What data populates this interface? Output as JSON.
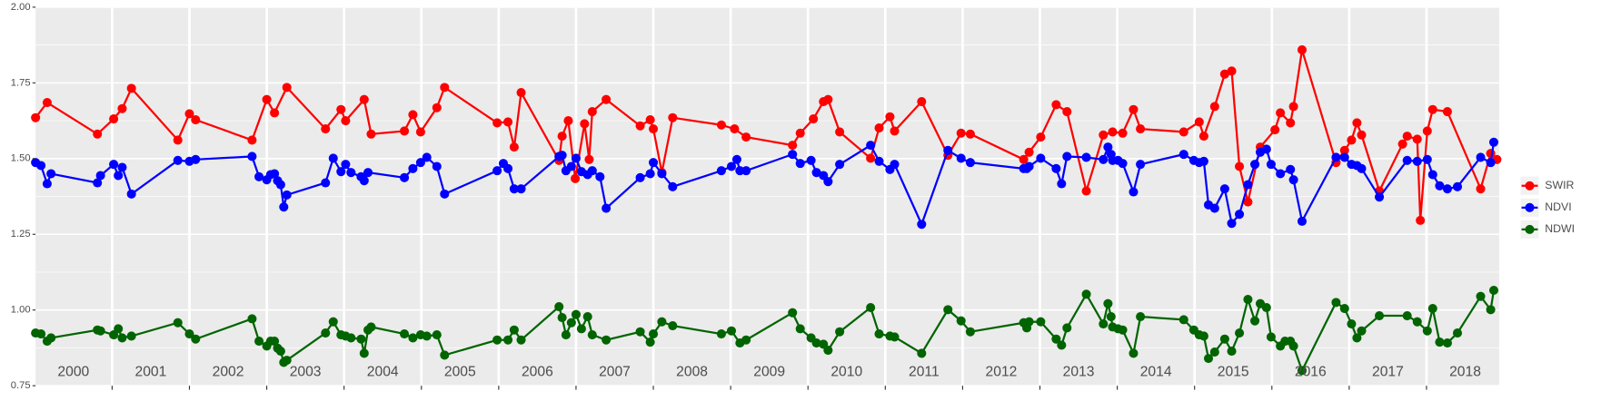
{
  "chart_data": {
    "type": "line",
    "categories": [
      "2000",
      "2001",
      "2002",
      "2003",
      "2004",
      "2005",
      "2006",
      "2007",
      "2008",
      "2009",
      "2010",
      "2011",
      "2012",
      "2013",
      "2014",
      "2015",
      "2016",
      "2017",
      "2018"
    ],
    "xgrid": [
      2000,
      2001,
      2002,
      2003,
      2004,
      2005,
      2006,
      2007,
      2008,
      2009,
      2010,
      2011,
      2012,
      2013,
      2014,
      2015,
      2016,
      2017,
      2018,
      2019
    ],
    "xlim": [
      2000.01,
      2018.94
    ],
    "ylim": [
      0.75,
      2.0
    ],
    "yticks": [
      0.75,
      {
        "value": 1.0,
        "label": "1.00"
      },
      1.25,
      {
        "value": 1.5,
        "label": "1.50"
      },
      1.75,
      {
        "value": 2.0,
        "label": "2.00"
      }
    ],
    "grid": true,
    "minor_grid": true,
    "legend": "right",
    "series": [
      {
        "name": "SWIR",
        "color": "#ff0000",
        "x": [
          2000.01,
          2000.16,
          2000.81,
          2001.02,
          2001.13,
          2001.25,
          2001.85,
          2002.0,
          2002.08,
          2002.81,
          2003.0,
          2003.1,
          2003.26,
          2003.76,
          2003.96,
          2004.02,
          2004.26,
          2004.35,
          2004.78,
          2004.89,
          2004.99,
          2005.2,
          2005.3,
          2005.98,
          2006.12,
          2006.2,
          2006.29,
          2006.78,
          2006.82,
          2006.9,
          2006.99,
          2007.11,
          2007.17,
          2007.21,
          2007.39,
          2007.83,
          2007.96,
          2008.0,
          2008.11,
          2008.25,
          2008.88,
          2009.05,
          2009.2,
          2009.8,
          2009.9,
          2010.07,
          2010.2,
          2010.26,
          2010.41,
          2010.81,
          2010.92,
          2011.06,
          2011.12,
          2011.47,
          2011.81,
          2011.98,
          2012.1,
          2012.79,
          2012.86,
          2013.01,
          2013.21,
          2013.35,
          2013.6,
          2013.82,
          2013.94,
          2014.07,
          2014.21,
          2014.3,
          2014.86,
          2015.06,
          2015.12,
          2015.26,
          2015.39,
          2015.48,
          2015.58,
          2015.69,
          2015.85,
          2016.04,
          2016.11,
          2016.24,
          2016.28,
          2016.39,
          2016.83,
          2016.94,
          2017.03,
          2017.1,
          2017.16,
          2017.39,
          2017.69,
          2017.75,
          2017.88,
          2017.92,
          2018.01,
          2018.08,
          2018.27,
          2018.7,
          2018.83,
          2018.91
        ],
        "values": [
          1.635,
          1.685,
          1.581,
          1.631,
          1.665,
          1.732,
          1.561,
          1.648,
          1.628,
          1.561,
          1.695,
          1.651,
          1.735,
          1.598,
          1.662,
          1.625,
          1.695,
          1.581,
          1.591,
          1.645,
          1.588,
          1.668,
          1.735,
          1.618,
          1.621,
          1.538,
          1.718,
          1.494,
          1.574,
          1.625,
          1.434,
          1.615,
          1.497,
          1.655,
          1.695,
          1.608,
          1.628,
          1.598,
          1.454,
          1.635,
          1.611,
          1.598,
          1.571,
          1.544,
          1.584,
          1.631,
          1.688,
          1.695,
          1.588,
          1.501,
          1.601,
          1.638,
          1.591,
          1.688,
          1.511,
          1.584,
          1.581,
          1.497,
          1.521,
          1.571,
          1.678,
          1.655,
          1.393,
          1.578,
          1.588,
          1.584,
          1.662,
          1.598,
          1.588,
          1.621,
          1.574,
          1.672,
          1.779,
          1.789,
          1.474,
          1.357,
          1.538,
          1.595,
          1.651,
          1.618,
          1.672,
          1.859,
          1.487,
          1.527,
          1.561,
          1.618,
          1.578,
          1.393,
          1.548,
          1.574,
          1.564,
          1.296,
          1.591,
          1.662,
          1.655,
          1.4,
          1.517,
          1.497
        ]
      },
      {
        "name": "NDVI",
        "color": "#0000ff",
        "x": [
          2000.01,
          2000.08,
          2000.16,
          2000.21,
          2000.81,
          2000.85,
          2001.02,
          2001.08,
          2001.13,
          2001.25,
          2001.85,
          2002.0,
          2002.08,
          2002.81,
          2002.9,
          2003.0,
          2003.05,
          2003.1,
          2003.14,
          2003.18,
          2003.22,
          2003.26,
          2003.76,
          2003.86,
          2003.96,
          2004.02,
          2004.09,
          2004.22,
          2004.26,
          2004.31,
          2004.78,
          2004.89,
          2004.99,
          2005.07,
          2005.2,
          2005.3,
          2005.98,
          2006.06,
          2006.12,
          2006.2,
          2006.29,
          2006.78,
          2006.82,
          2006.87,
          2006.94,
          2007.0,
          2007.07,
          2007.15,
          2007.21,
          2007.31,
          2007.39,
          2007.83,
          2007.96,
          2008.0,
          2008.11,
          2008.25,
          2008.88,
          2009.01,
          2009.08,
          2009.12,
          2009.2,
          2009.8,
          2009.9,
          2010.04,
          2010.11,
          2010.2,
          2010.26,
          2010.41,
          2010.81,
          2010.92,
          2011.06,
          2011.12,
          2011.47,
          2011.81,
          2011.98,
          2012.1,
          2012.79,
          2012.83,
          2012.86,
          2013.01,
          2013.21,
          2013.28,
          2013.35,
          2013.6,
          2013.82,
          2013.88,
          2013.92,
          2013.94,
          2014.01,
          2014.07,
          2014.21,
          2014.3,
          2014.86,
          2014.99,
          2015.06,
          2015.12,
          2015.18,
          2015.26,
          2015.39,
          2015.48,
          2015.58,
          2015.69,
          2015.78,
          2015.85,
          2015.93,
          2015.99,
          2016.11,
          2016.24,
          2016.28,
          2016.39,
          2016.83,
          2016.94,
          2017.03,
          2017.1,
          2017.16,
          2017.39,
          2017.75,
          2017.88,
          2018.01,
          2018.08,
          2018.17,
          2018.27,
          2018.4,
          2018.7,
          2018.83,
          2018.87
        ],
        "values": [
          1.487,
          1.477,
          1.417,
          1.45,
          1.42,
          1.444,
          1.481,
          1.444,
          1.471,
          1.383,
          1.494,
          1.491,
          1.497,
          1.507,
          1.44,
          1.43,
          1.447,
          1.45,
          1.427,
          1.414,
          1.34,
          1.38,
          1.42,
          1.501,
          1.457,
          1.481,
          1.454,
          1.44,
          1.427,
          1.454,
          1.437,
          1.467,
          1.487,
          1.504,
          1.474,
          1.383,
          1.46,
          1.484,
          1.467,
          1.4,
          1.4,
          1.507,
          1.511,
          1.46,
          1.474,
          1.501,
          1.457,
          1.447,
          1.46,
          1.44,
          1.336,
          1.437,
          1.45,
          1.487,
          1.45,
          1.407,
          1.46,
          1.474,
          1.497,
          1.46,
          1.46,
          1.514,
          1.484,
          1.494,
          1.454,
          1.444,
          1.424,
          1.481,
          1.544,
          1.491,
          1.464,
          1.481,
          1.283,
          1.527,
          1.501,
          1.487,
          1.467,
          1.467,
          1.474,
          1.501,
          1.467,
          1.417,
          1.507,
          1.504,
          1.497,
          1.538,
          1.514,
          1.494,
          1.494,
          1.484,
          1.39,
          1.481,
          1.514,
          1.494,
          1.487,
          1.491,
          1.347,
          1.336,
          1.4,
          1.286,
          1.316,
          1.414,
          1.481,
          1.521,
          1.531,
          1.481,
          1.45,
          1.464,
          1.43,
          1.293,
          1.504,
          1.504,
          1.481,
          1.477,
          1.467,
          1.373,
          1.494,
          1.491,
          1.497,
          1.447,
          1.41,
          1.4,
          1.407,
          1.504,
          1.487,
          1.554
        ]
      },
      {
        "name": "NDWI",
        "color": "#006400",
        "x": [
          2000.01,
          2000.08,
          2000.16,
          2000.21,
          2000.81,
          2000.85,
          2001.02,
          2001.08,
          2001.13,
          2001.25,
          2001.85,
          2002.0,
          2002.08,
          2002.81,
          2002.9,
          2003.0,
          2003.05,
          2003.1,
          2003.14,
          2003.18,
          2003.22,
          2003.26,
          2003.76,
          2003.86,
          2003.96,
          2004.02,
          2004.09,
          2004.22,
          2004.26,
          2004.31,
          2004.35,
          2004.78,
          2004.89,
          2004.99,
          2005.07,
          2005.2,
          2005.3,
          2005.98,
          2006.12,
          2006.2,
          2006.29,
          2006.78,
          2006.82,
          2006.87,
          2006.94,
          2007.0,
          2007.07,
          2007.15,
          2007.21,
          2007.39,
          2007.83,
          2007.96,
          2008.0,
          2008.11,
          2008.25,
          2008.88,
          2009.01,
          2009.12,
          2009.2,
          2009.8,
          2009.9,
          2010.04,
          2010.11,
          2010.2,
          2010.26,
          2010.41,
          2010.81,
          2010.92,
          2011.06,
          2011.12,
          2011.47,
          2011.81,
          2011.98,
          2012.1,
          2012.79,
          2012.83,
          2012.86,
          2013.01,
          2013.21,
          2013.28,
          2013.35,
          2013.6,
          2013.82,
          2013.88,
          2013.92,
          2013.94,
          2014.01,
          2014.07,
          2014.21,
          2014.3,
          2014.86,
          2014.99,
          2015.06,
          2015.12,
          2015.18,
          2015.26,
          2015.39,
          2015.48,
          2015.58,
          2015.69,
          2015.78,
          2015.85,
          2015.93,
          2015.99,
          2016.11,
          2016.17,
          2016.24,
          2016.28,
          2016.39,
          2016.83,
          2016.94,
          2017.03,
          2017.1,
          2017.16,
          2017.39,
          2017.75,
          2017.88,
          2018.01,
          2018.08,
          2018.17,
          2018.27,
          2018.4,
          2018.7,
          2018.83,
          2018.87
        ],
        "values": [
          0.924,
          0.921,
          0.897,
          0.908,
          0.934,
          0.931,
          0.918,
          0.938,
          0.908,
          0.914,
          0.958,
          0.921,
          0.904,
          0.971,
          0.897,
          0.881,
          0.897,
          0.897,
          0.874,
          0.864,
          0.827,
          0.834,
          0.924,
          0.961,
          0.918,
          0.914,
          0.908,
          0.904,
          0.857,
          0.934,
          0.944,
          0.921,
          0.908,
          0.918,
          0.914,
          0.918,
          0.851,
          0.901,
          0.901,
          0.934,
          0.901,
          1.011,
          0.975,
          0.918,
          0.958,
          0.985,
          0.938,
          0.978,
          0.918,
          0.901,
          0.928,
          0.894,
          0.921,
          0.961,
          0.948,
          0.921,
          0.931,
          0.891,
          0.901,
          0.991,
          0.938,
          0.908,
          0.891,
          0.887,
          0.867,
          0.928,
          1.008,
          0.921,
          0.914,
          0.911,
          0.857,
          1.001,
          0.964,
          0.928,
          0.958,
          0.941,
          0.961,
          0.961,
          0.904,
          0.884,
          0.941,
          1.052,
          0.954,
          1.021,
          0.978,
          0.944,
          0.938,
          0.934,
          0.857,
          0.978,
          0.968,
          0.934,
          0.918,
          0.914,
          0.84,
          0.861,
          0.904,
          0.864,
          0.924,
          1.035,
          0.964,
          1.021,
          1.008,
          0.911,
          0.881,
          0.897,
          0.897,
          0.881,
          0.8,
          1.025,
          1.005,
          0.954,
          0.908,
          0.931,
          0.981,
          0.981,
          0.961,
          0.931,
          1.005,
          0.894,
          0.891,
          0.924,
          1.045,
          1.001,
          1.065
        ]
      }
    ]
  }
}
